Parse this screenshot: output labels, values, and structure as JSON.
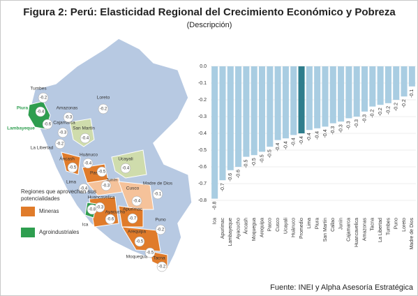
{
  "title": "Figura 2: Perú: Elasticidad Regional del Crecimiento Económico y Pobreza",
  "subtitle": "(Descripción)",
  "source": "Fuente: INEI y Alpha Asesoría Estratégica",
  "map": {
    "legend_title": "Regiones que aprovechan sus potencialidades",
    "legend": [
      {
        "label": "Mineras",
        "color": "#e07b2a"
      },
      {
        "label": "Agroindustriales",
        "color": "#2e9e4f"
      }
    ],
    "regions": [
      {
        "name": "Tumbes",
        "value": -0.2
      },
      {
        "name": "Piura",
        "value": -0.4
      },
      {
        "name": "Lambayeque",
        "value": -0.6
      },
      {
        "name": "Cajamarca",
        "value": -0.3
      },
      {
        "name": "Amazonas",
        "value": -0.3
      },
      {
        "name": "Loreto",
        "value": -0.2
      },
      {
        "name": "San Martín",
        "value": -0.4
      },
      {
        "name": "La Libertad",
        "value": -0.2
      },
      {
        "name": "Huánuco",
        "value": -0.4
      },
      {
        "name": "Áncash",
        "value": -0.5
      },
      {
        "name": "Ucayali",
        "value": -0.4
      },
      {
        "name": "Pasco",
        "value": -0.5
      },
      {
        "name": "Lima",
        "value": -0.4
      },
      {
        "name": "Junín",
        "value": -0.3
      },
      {
        "name": "Madre de Dios",
        "value": -0.1
      },
      {
        "name": "Cusco",
        "value": -0.4
      },
      {
        "name": "Huancavelica",
        "value": -0.3
      },
      {
        "name": "Ayacucho",
        "value": -0.6
      },
      {
        "name": "Apurímac",
        "value": -0.7
      },
      {
        "name": "Ica",
        "value": -0.8
      },
      {
        "name": "Arequipa",
        "value": -0.5
      },
      {
        "name": "Puno",
        "value": -0.2
      },
      {
        "name": "Moquegua",
        "value": -0.5
      },
      {
        "name": "Tacna",
        "value": -0.2
      }
    ]
  },
  "chart_data": {
    "type": "bar",
    "categories": [
      "Ica",
      "Apurímac",
      "Lambayeque",
      "Ayacucho",
      "Áncash",
      "Moquegua",
      "Arequipa",
      "Pasco",
      "Cusco",
      "Ucayali",
      "Huánuco",
      "Promedio",
      "Lima",
      "Piura",
      "San Martín",
      "Callao",
      "Junín",
      "Cajamarca",
      "Huancavelica",
      "Amazonas",
      "Tacna",
      "La Libertad",
      "Tumbes",
      "Puno",
      "Loreto",
      "Madre de Dios"
    ],
    "values": [
      -0.79,
      -0.68,
      -0.62,
      -0.6,
      -0.54,
      -0.53,
      -0.51,
      -0.48,
      -0.44,
      -0.43,
      -0.41,
      -0.4,
      -0.38,
      -0.37,
      -0.36,
      -0.34,
      -0.33,
      -0.31,
      -0.3,
      -0.27,
      -0.24,
      -0.23,
      -0.22,
      -0.2,
      -0.18,
      -0.12
    ],
    "value_labels": [
      "-0.8",
      "-0.7",
      "-0.6",
      "-0.6",
      "-0.5",
      "-0.5",
      "-0.5",
      "-0.5",
      "-0.4",
      "-0.4",
      "-0.4",
      "-0.4",
      "-0.4",
      "-0.4",
      "-0.4",
      "-0.3",
      "-0.3",
      "-0.3",
      "-0.3",
      "-0.3",
      "-0.2",
      "-0.2",
      "-0.2",
      "-0.2",
      "-0.2",
      "-0.1"
    ],
    "colors": [
      "#a9cde2",
      "#a9cde2",
      "#a9cde2",
      "#a9cde2",
      "#a9cde2",
      "#a9cde2",
      "#a9cde2",
      "#a9cde2",
      "#a9cde2",
      "#a9cde2",
      "#a9cde2",
      "#2e7d8c",
      "#a9cde2",
      "#a9cde2",
      "#a9cde2",
      "#a9cde2",
      "#a9cde2",
      "#a9cde2",
      "#a9cde2",
      "#a9cde2",
      "#a9cde2",
      "#a9cde2",
      "#a9cde2",
      "#a9cde2",
      "#a9cde2",
      "#a9cde2"
    ],
    "ylim": [
      -0.8,
      0
    ],
    "yticks": [
      {
        "value": 0,
        "label": "0.0"
      },
      -0.1,
      -0.2,
      -0.3,
      -0.4,
      -0.5,
      -0.6,
      -0.7,
      -0.8
    ],
    "grid": true
  }
}
